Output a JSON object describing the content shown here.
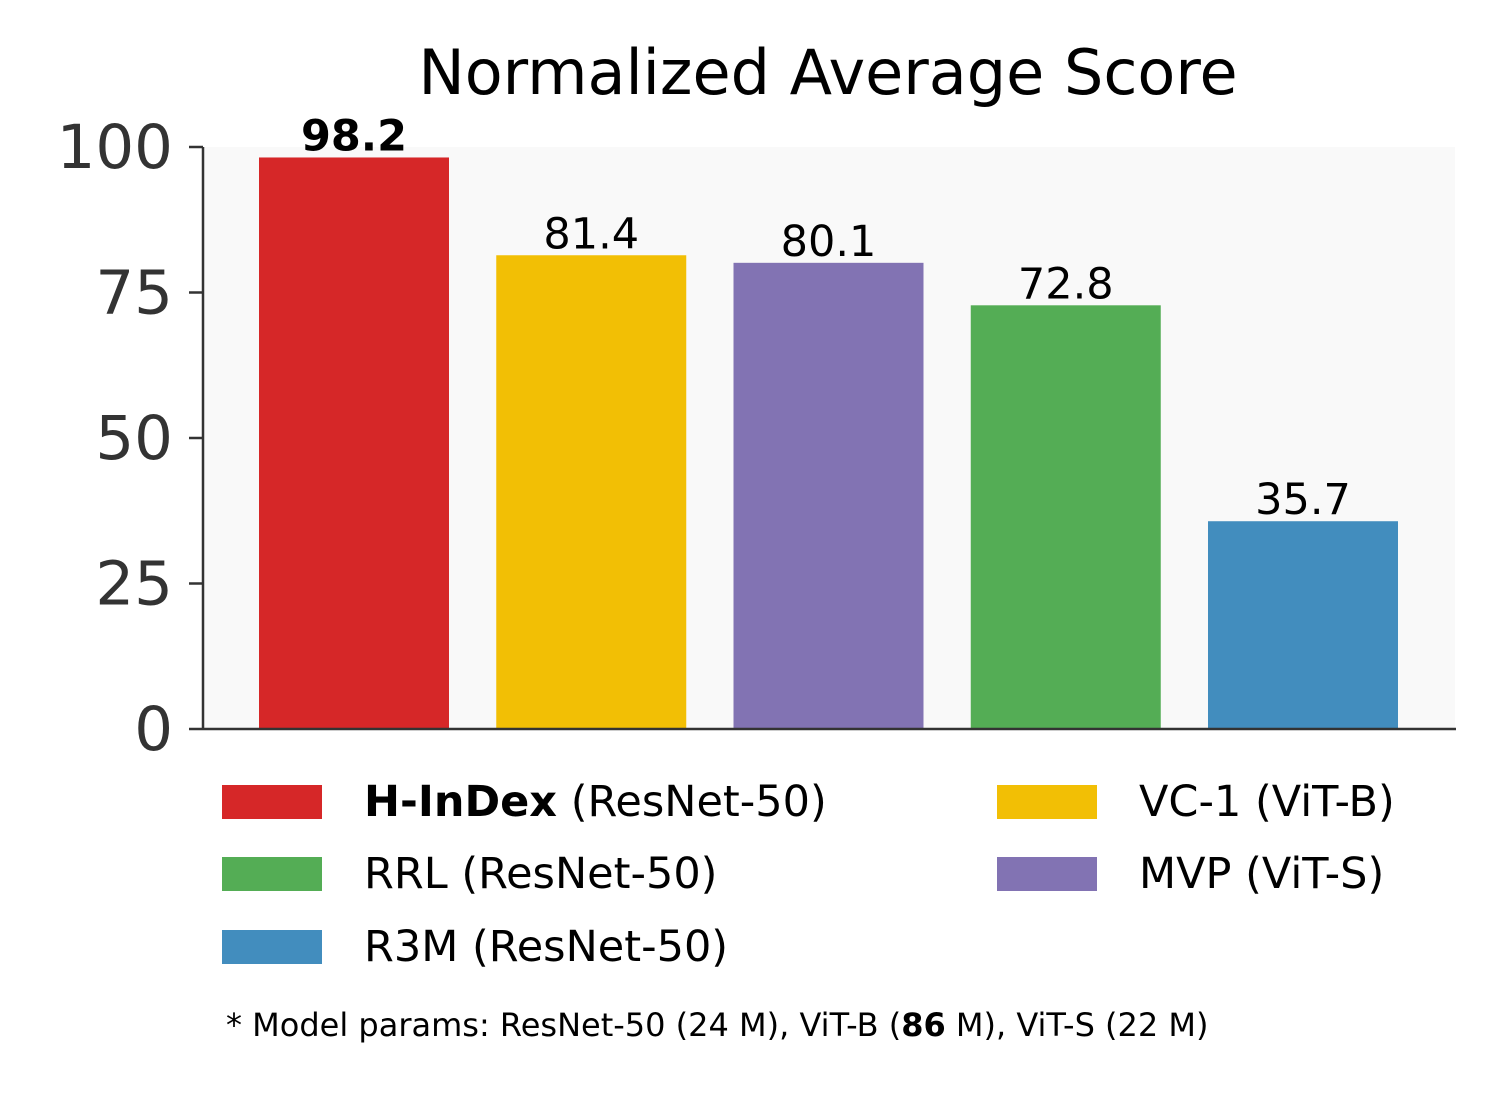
{
  "chart_data": {
    "type": "bar",
    "title": "Normalized Average Score",
    "xlabel": "",
    "ylabel": "",
    "ylim": [
      0,
      100
    ],
    "yticks": [
      0,
      25,
      50,
      75,
      100
    ],
    "categories": [
      "H-InDex (ResNet-50)",
      "VC-1 (ViT-B)",
      "MVP (ViT-S)",
      "RRL (ResNet-50)",
      "R3M (ResNet-50)"
    ],
    "values": [
      98.2,
      81.4,
      80.1,
      72.8,
      35.7
    ],
    "value_labels": [
      "98.2",
      "81.4",
      "80.1",
      "72.8",
      "35.7"
    ],
    "bold_value_index": 0,
    "colors": [
      "#d62728",
      "#f2bf05",
      "#8273b3",
      "#54ad55",
      "#428dbe"
    ],
    "grid": false,
    "background": "#f9f9f9",
    "legend_placement": "bottom",
    "legend": [
      {
        "bold": "H-InDex",
        "rest": " (ResNet-50)",
        "color": "#d62728"
      },
      {
        "bold": "",
        "rest": "VC-1 (ViT-B)",
        "color": "#f2bf05"
      },
      {
        "bold": "",
        "rest": "RRL (ResNet-50)",
        "color": "#54ad55"
      },
      {
        "bold": "",
        "rest": "MVP (ViT-S)",
        "color": "#8273b3"
      },
      {
        "bold": "",
        "rest": "R3M (ResNet-50)",
        "color": "#428dbe"
      }
    ],
    "footnote": {
      "prefix": "* Model params: ResNet-50 (24 M), ViT-B (",
      "bold": "86",
      "suffix": " M), ViT-S (22 M)"
    }
  }
}
